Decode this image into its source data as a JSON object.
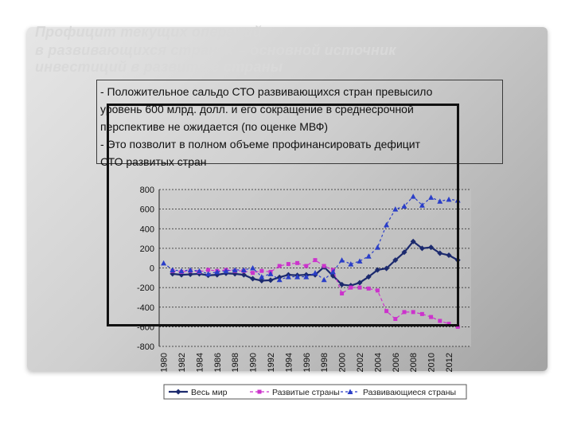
{
  "slide": {
    "title_lines": [
      "Профицит текущих операций",
      "в развивающихся странах – основной источник",
      "инвестиций в развитые страны"
    ],
    "body_lines": [
      "- Положительное сальдо СТО развивающихся стран превысило",
      "уровень 600 млрд. долл. и его сокращение в среднесрочной",
      "перспективе не ожидается (по оценке МВФ)",
      "- Это позволит в полном объеме профинансировать дефицит",
      "СТО развитых стран"
    ]
  },
  "chart_data": {
    "type": "line",
    "title": "",
    "xlabel": "",
    "ylabel": "",
    "ylim": [
      -800,
      800
    ],
    "yticks": [
      800,
      600,
      400,
      200,
      0,
      -200,
      -400,
      -600,
      -800
    ],
    "xlim": [
      1979.5,
      2014.5
    ],
    "xtick_labels": [
      "1980",
      "1982",
      "1984",
      "1986",
      "1988",
      "1990",
      "1992",
      "1994",
      "1996",
      "1998",
      "2000",
      "2002",
      "2004",
      "2006",
      "2008",
      "2010",
      "2012"
    ],
    "x": [
      1980,
      1981,
      1982,
      1983,
      1984,
      1985,
      1986,
      1987,
      1988,
      1989,
      1990,
      1991,
      1992,
      1993,
      1994,
      1995,
      1996,
      1997,
      1998,
      1999,
      2000,
      2001,
      2002,
      2003,
      2004,
      2005,
      2006,
      2007,
      2008,
      2009,
      2010,
      2011,
      2012,
      2013,
      2014
    ],
    "grid": true,
    "legend_position": "bottom",
    "series": [
      {
        "name": "Весь мир",
        "color": "#1c2a6e",
        "marker": "diamond",
        "values": [
          null,
          -60,
          -70,
          -65,
          -60,
          -75,
          -70,
          -55,
          -60,
          -70,
          -110,
          -130,
          -125,
          -95,
          -70,
          -75,
          -70,
          -70,
          10,
          -80,
          -170,
          -180,
          -150,
          -90,
          -20,
          -5,
          80,
          160,
          270,
          200,
          210,
          150,
          130,
          80,
          null
        ]
      },
      {
        "name": "Развитые страны",
        "color": "#cc33cc",
        "marker": "square",
        "values": [
          null,
          -30,
          -40,
          -30,
          -40,
          -20,
          -30,
          -20,
          -30,
          -30,
          -50,
          -30,
          -40,
          20,
          40,
          50,
          20,
          80,
          20,
          -20,
          -260,
          -200,
          -200,
          -210,
          -230,
          -440,
          -520,
          -450,
          -450,
          -470,
          -500,
          -540,
          -570,
          -600,
          null
        ]
      },
      {
        "name": "Развивающиеся страны",
        "color": "#2a3ec8",
        "marker": "triangle",
        "values": [
          50,
          -20,
          -30,
          -20,
          -30,
          -60,
          -40,
          -30,
          -20,
          -20,
          0,
          -90,
          -60,
          -120,
          -90,
          -90,
          -90,
          -50,
          -120,
          -40,
          80,
          40,
          70,
          120,
          210,
          440,
          600,
          630,
          730,
          640,
          720,
          680,
          700,
          690,
          null
        ]
      }
    ]
  }
}
